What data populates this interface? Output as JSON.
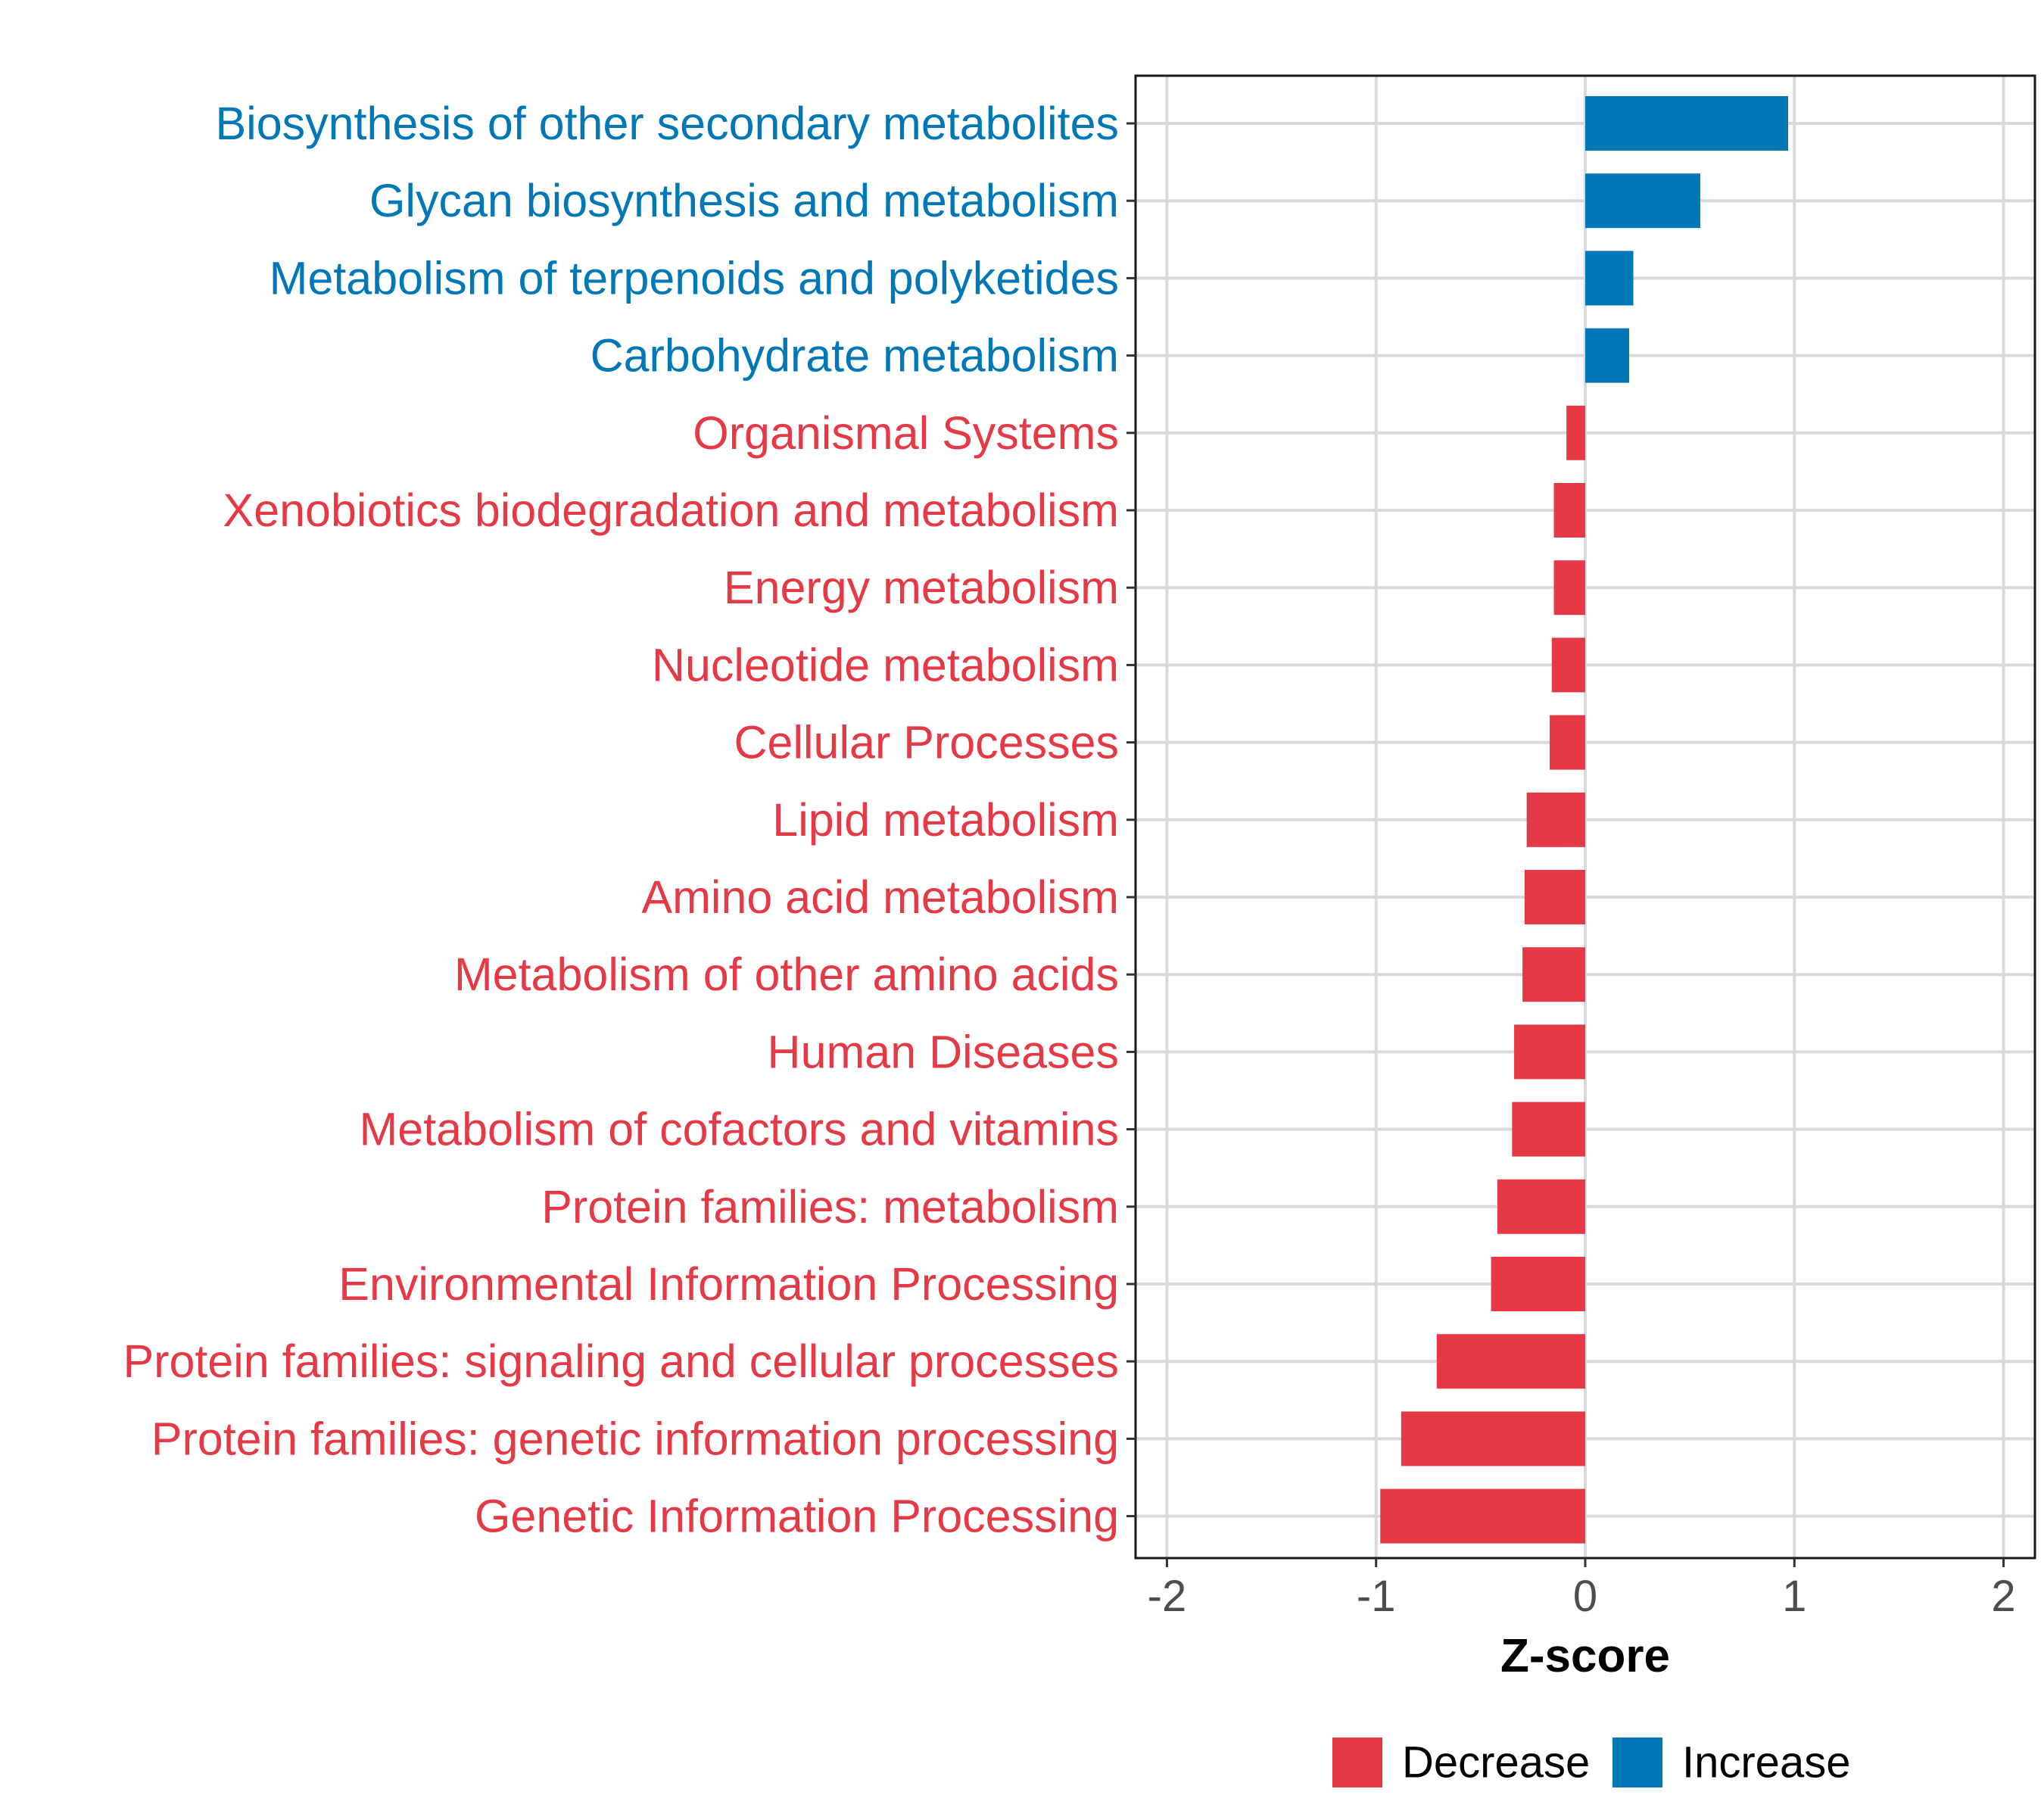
{
  "chart_data": {
    "type": "bar",
    "orientation": "horizontal",
    "title": "",
    "xlabel": "Z-score",
    "ylabel": "",
    "xlim": [
      -2.15,
      2.15
    ],
    "x_ticks": [
      "-2",
      "-1",
      "0",
      "1",
      "2"
    ],
    "x_tick_values": [
      -2,
      -1,
      0,
      1,
      2
    ],
    "grid": true,
    "categories": [
      "Biosynthesis of other secondary metabolites",
      "Glycan biosynthesis and metabolism",
      "Metabolism of terpenoids and polyketides",
      "Carbohydrate metabolism",
      "Organismal Systems",
      "Xenobiotics biodegradation and metabolism",
      "Energy metabolism",
      "Nucleotide metabolism",
      "Cellular Processes",
      "Lipid metabolism",
      "Amino acid metabolism",
      "Metabolism of other amino acids",
      "Human Diseases",
      "Metabolism of cofactors and vitamins",
      "Protein families: metabolism",
      "Environmental Information Processing",
      "Protein families: signaling and cellular processes",
      "Protein families: genetic information processing",
      "Genetic Information Processing"
    ],
    "values": [
      0.97,
      0.55,
      0.23,
      0.21,
      -0.09,
      -0.15,
      -0.15,
      -0.16,
      -0.17,
      -0.28,
      -0.29,
      -0.3,
      -0.34,
      -0.35,
      -0.42,
      -0.45,
      -0.71,
      -0.88,
      -0.98
    ],
    "groups": [
      "Increase",
      "Increase",
      "Increase",
      "Increase",
      "Decrease",
      "Decrease",
      "Decrease",
      "Decrease",
      "Decrease",
      "Decrease",
      "Decrease",
      "Decrease",
      "Decrease",
      "Decrease",
      "Decrease",
      "Decrease",
      "Decrease",
      "Decrease",
      "Decrease"
    ],
    "legend": {
      "position": "bottom",
      "entries": [
        {
          "label": "Decrease",
          "color": "#E63946"
        },
        {
          "label": "Increase",
          "color": "#0077B6"
        }
      ]
    },
    "colors": {
      "Decrease": "#E63946",
      "Increase": "#0077B6"
    }
  }
}
